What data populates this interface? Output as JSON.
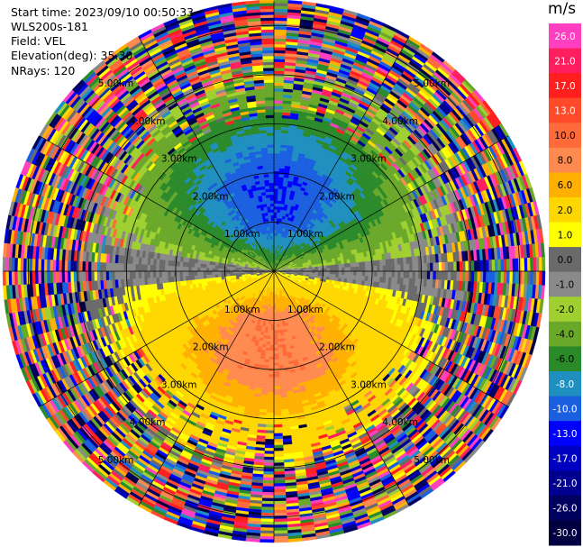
{
  "header": {
    "start_time": "Start time: 2023/09/10 00:50:33",
    "instrument": "WLS200s-181",
    "field": "Field: VEL",
    "elevation": "Elevation(deg): 35.30",
    "nrays": "NRays: 120"
  },
  "chart_data": {
    "type": "heatmap",
    "projection": "ppi-polar",
    "field": "VEL",
    "units": "m/s",
    "elevation_deg": 35.3,
    "n_rays": 120,
    "max_range_km": 5.5,
    "range_rings_km": [
      1,
      2,
      3,
      4,
      5
    ],
    "ring_labels": [
      "1.00km",
      "2.00km",
      "3.00km",
      "4.00km",
      "5.00km"
    ],
    "colorbar": {
      "title": "m/s",
      "ticks": [
        "26.0",
        "21.0",
        "17.0",
        "13.0",
        "10.0",
        "8.0",
        "6.0",
        "2.0",
        "1.0",
        "0.0",
        "-1.0",
        "-2.0",
        "-4.0",
        "-6.0",
        "-8.0",
        "-10.0",
        "-13.0",
        "-17.0",
        "-21.0",
        "-26.0",
        "-30.0"
      ],
      "colors": [
        "#ff3fc0",
        "#ff1f5f",
        "#ff1f1f",
        "#ff4a2a",
        "#ff6a3a",
        "#ff8a50",
        "#ffb000",
        "#ffd700",
        "#ffff00",
        "#6a6a6a",
        "#8a8a8a",
        "#a0d030",
        "#6aa82a",
        "#2a8a2a",
        "#1e8fbf",
        "#1a5fe0",
        "#0000ff",
        "#0000c0",
        "#000090",
        "#000060",
        "#000040"
      ]
    },
    "field_pattern": {
      "near_north": "negative",
      "near_south": "positive",
      "far_range": "noisy"
    }
  }
}
